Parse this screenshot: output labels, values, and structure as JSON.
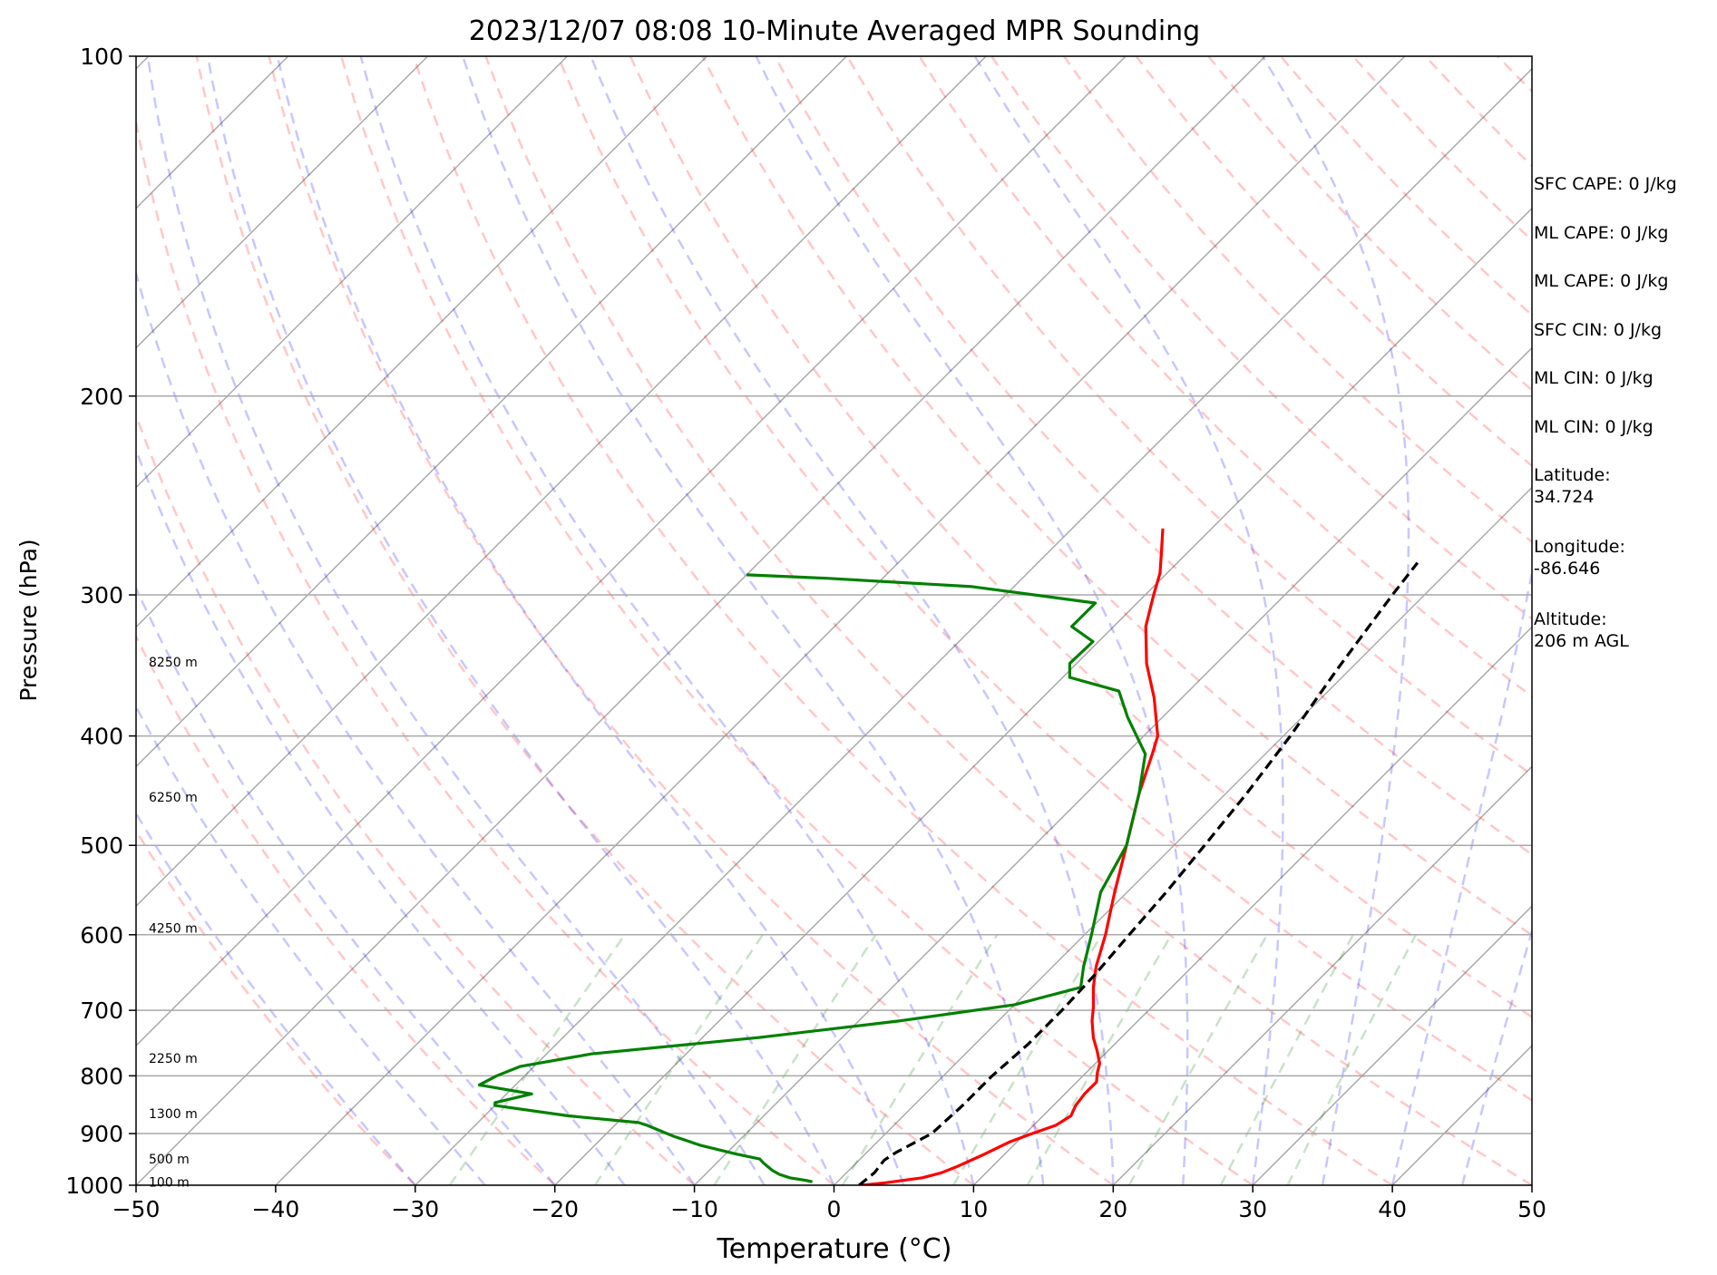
{
  "chart_data": {
    "type": "line",
    "subtype": "skew-t log-p sounding",
    "title": "2023/12/07 08:08 10-Minute Averaged MPR Sounding",
    "xlabel": "Temperature (°C)",
    "ylabel": "Pressure (hPa)",
    "xlim": [
      -50,
      50
    ],
    "ylim": [
      1000,
      100
    ],
    "y_scale": "log",
    "x_ticks": [
      -50,
      -40,
      -30,
      -20,
      -10,
      0,
      10,
      20,
      30,
      40,
      50
    ],
    "x_tick_labels": [
      "−50",
      "−40",
      "−30",
      "−20",
      "−10",
      "0",
      "10",
      "20",
      "30",
      "40",
      "50"
    ],
    "y_ticks": [
      1000,
      900,
      800,
      700,
      600,
      500,
      400,
      300,
      200,
      100
    ],
    "y_tick_labels": [
      "1000",
      "900",
      "800",
      "700",
      "600",
      "500",
      "400",
      "300",
      "200",
      "100"
    ],
    "grid": true,
    "height_labels": [
      {
        "text": "100 m",
        "p": 994
      },
      {
        "text": "500 m",
        "p": 948
      },
      {
        "text": "1300 m",
        "p": 864
      },
      {
        "text": "2250 m",
        "p": 772
      },
      {
        "text": "4250 m",
        "p": 592
      },
      {
        "text": "6250 m",
        "p": 453
      },
      {
        "text": "8250 m",
        "p": 344
      }
    ],
    "series": [
      {
        "key": "temperature",
        "color": "#ff0000",
        "points": [
          [
            1000,
            2.0
          ],
          [
            995,
            3.5
          ],
          [
            985,
            5.8
          ],
          [
            975,
            6.8
          ],
          [
            962,
            7.5
          ],
          [
            940,
            8.5
          ],
          [
            915,
            9.5
          ],
          [
            900,
            10.5
          ],
          [
            885,
            11.6
          ],
          [
            868,
            12.0
          ],
          [
            850,
            11.6
          ],
          [
            830,
            11.4
          ],
          [
            810,
            11.4
          ],
          [
            795,
            10.8
          ],
          [
            780,
            10.3
          ],
          [
            760,
            9.2
          ],
          [
            740,
            8.0
          ],
          [
            715,
            6.7
          ],
          [
            695,
            5.8
          ],
          [
            668,
            4.4
          ],
          [
            640,
            3.1
          ],
          [
            600,
            1.5
          ],
          [
            550,
            -0.9
          ],
          [
            500,
            -3.4
          ],
          [
            450,
            -6.2
          ],
          [
            415,
            -8.1
          ],
          [
            400,
            -9.0
          ],
          [
            370,
            -12.0
          ],
          [
            345,
            -15.0
          ],
          [
            320,
            -17.7
          ],
          [
            300,
            -19.4
          ],
          [
            287,
            -20.5
          ],
          [
            275,
            -21.9
          ],
          [
            262,
            -23.5
          ]
        ]
      },
      {
        "key": "dewpoint",
        "color": "#008000",
        "points": [
          [
            993,
            -1.8
          ],
          [
            990,
            -2.4
          ],
          [
            985,
            -3.7
          ],
          [
            978,
            -4.7
          ],
          [
            970,
            -5.5
          ],
          [
            955,
            -6.7
          ],
          [
            948,
            -7.2
          ],
          [
            938,
            -9.3
          ],
          [
            922,
            -12.4
          ],
          [
            905,
            -15.0
          ],
          [
            885,
            -17.7
          ],
          [
            880,
            -18.5
          ],
          [
            868,
            -24.0
          ],
          [
            850,
            -30.0
          ],
          [
            845,
            -30.2
          ],
          [
            830,
            -28.2
          ],
          [
            815,
            -32.6
          ],
          [
            800,
            -32.0
          ],
          [
            785,
            -31.0
          ],
          [
            765,
            -26.8
          ],
          [
            740,
            -16.0
          ],
          [
            715,
            -7.0
          ],
          [
            692,
            0.0
          ],
          [
            668,
            3.5
          ],
          [
            640,
            2.2
          ],
          [
            600,
            0.5
          ],
          [
            550,
            -1.9
          ],
          [
            500,
            -3.4
          ],
          [
            450,
            -6.2
          ],
          [
            415,
            -8.6
          ],
          [
            385,
            -12.5
          ],
          [
            365,
            -15.0
          ],
          [
            355,
            -19.5
          ],
          [
            345,
            -20.5
          ],
          [
            330,
            -20.4
          ],
          [
            320,
            -23.0
          ],
          [
            305,
            -23.0
          ],
          [
            295,
            -33.0
          ],
          [
            290,
            -44.0
          ],
          [
            288,
            -50.0
          ]
        ]
      },
      {
        "key": "parcel",
        "color": "#000000",
        "dashed": true,
        "points": [
          [
            1000,
            1.8
          ],
          [
            975,
            2.0
          ],
          [
            950,
            1.8
          ],
          [
            935,
            2.1
          ],
          [
            900,
            3.3
          ],
          [
            850,
            3.5
          ],
          [
            800,
            3.5
          ],
          [
            750,
            3.8
          ],
          [
            700,
            3.8
          ],
          [
            650,
            3.6
          ],
          [
            600,
            3.2
          ],
          [
            550,
            2.8
          ],
          [
            500,
            2.2
          ],
          [
            450,
            1.5
          ],
          [
            400,
            0.5
          ],
          [
            350,
            -0.9
          ],
          [
            300,
            -2.3
          ],
          [
            281,
            -2.8
          ]
        ]
      }
    ]
  },
  "info": {
    "sfc_cape": "SFC CAPE: 0 J/kg",
    "ml_cape_1": "ML CAPE: 0 J/kg",
    "ml_cape_2": "ML CAPE: 0 J/kg",
    "sfc_cin": "SFC CIN: 0 J/kg",
    "ml_cin_1": "ML CIN: 0 J/kg",
    "ml_cin_2": "ML CIN: 0 J/kg",
    "latitude": "Latitude:\n34.724",
    "longitude": "Longitude:\n-86.646",
    "altitude": "Altitude:\n206 m AGL"
  }
}
